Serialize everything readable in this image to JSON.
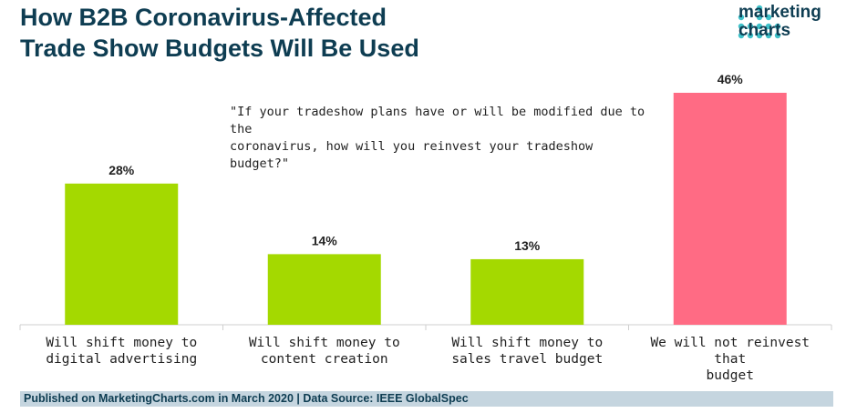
{
  "header": {
    "title_lines": [
      "How B2B Coronavirus-Affected",
      "Trade Show Budgets Will Be Used"
    ]
  },
  "logo": {
    "text_lines": [
      "marketing",
      "charts"
    ],
    "dot_color": "#3fc1c9"
  },
  "question_lines": [
    "\"If your tradeshow plans have or will be modified due to the",
    "coronavirus, how will you reinvest your tradeshow budget?\""
  ],
  "chart_data": {
    "type": "bar",
    "categories": [
      [
        "Will shift money to",
        "digital advertising"
      ],
      [
        "Will shift money to",
        "content creation"
      ],
      [
        "Will shift money to",
        "sales travel budget"
      ],
      [
        "We will not reinvest that",
        "budget"
      ]
    ],
    "values": [
      28,
      14,
      13,
      46
    ],
    "value_labels": [
      "28%",
      "14%",
      "13%",
      "46%"
    ],
    "colors": [
      "#a4d900",
      "#a4d900",
      "#a4d900",
      "#ff6b84"
    ],
    "unit": "%",
    "grid": false
  },
  "footer": {
    "text": "Published on MarketingCharts.com in March 2020 | Data Source: IEEE GlobalSpec"
  }
}
